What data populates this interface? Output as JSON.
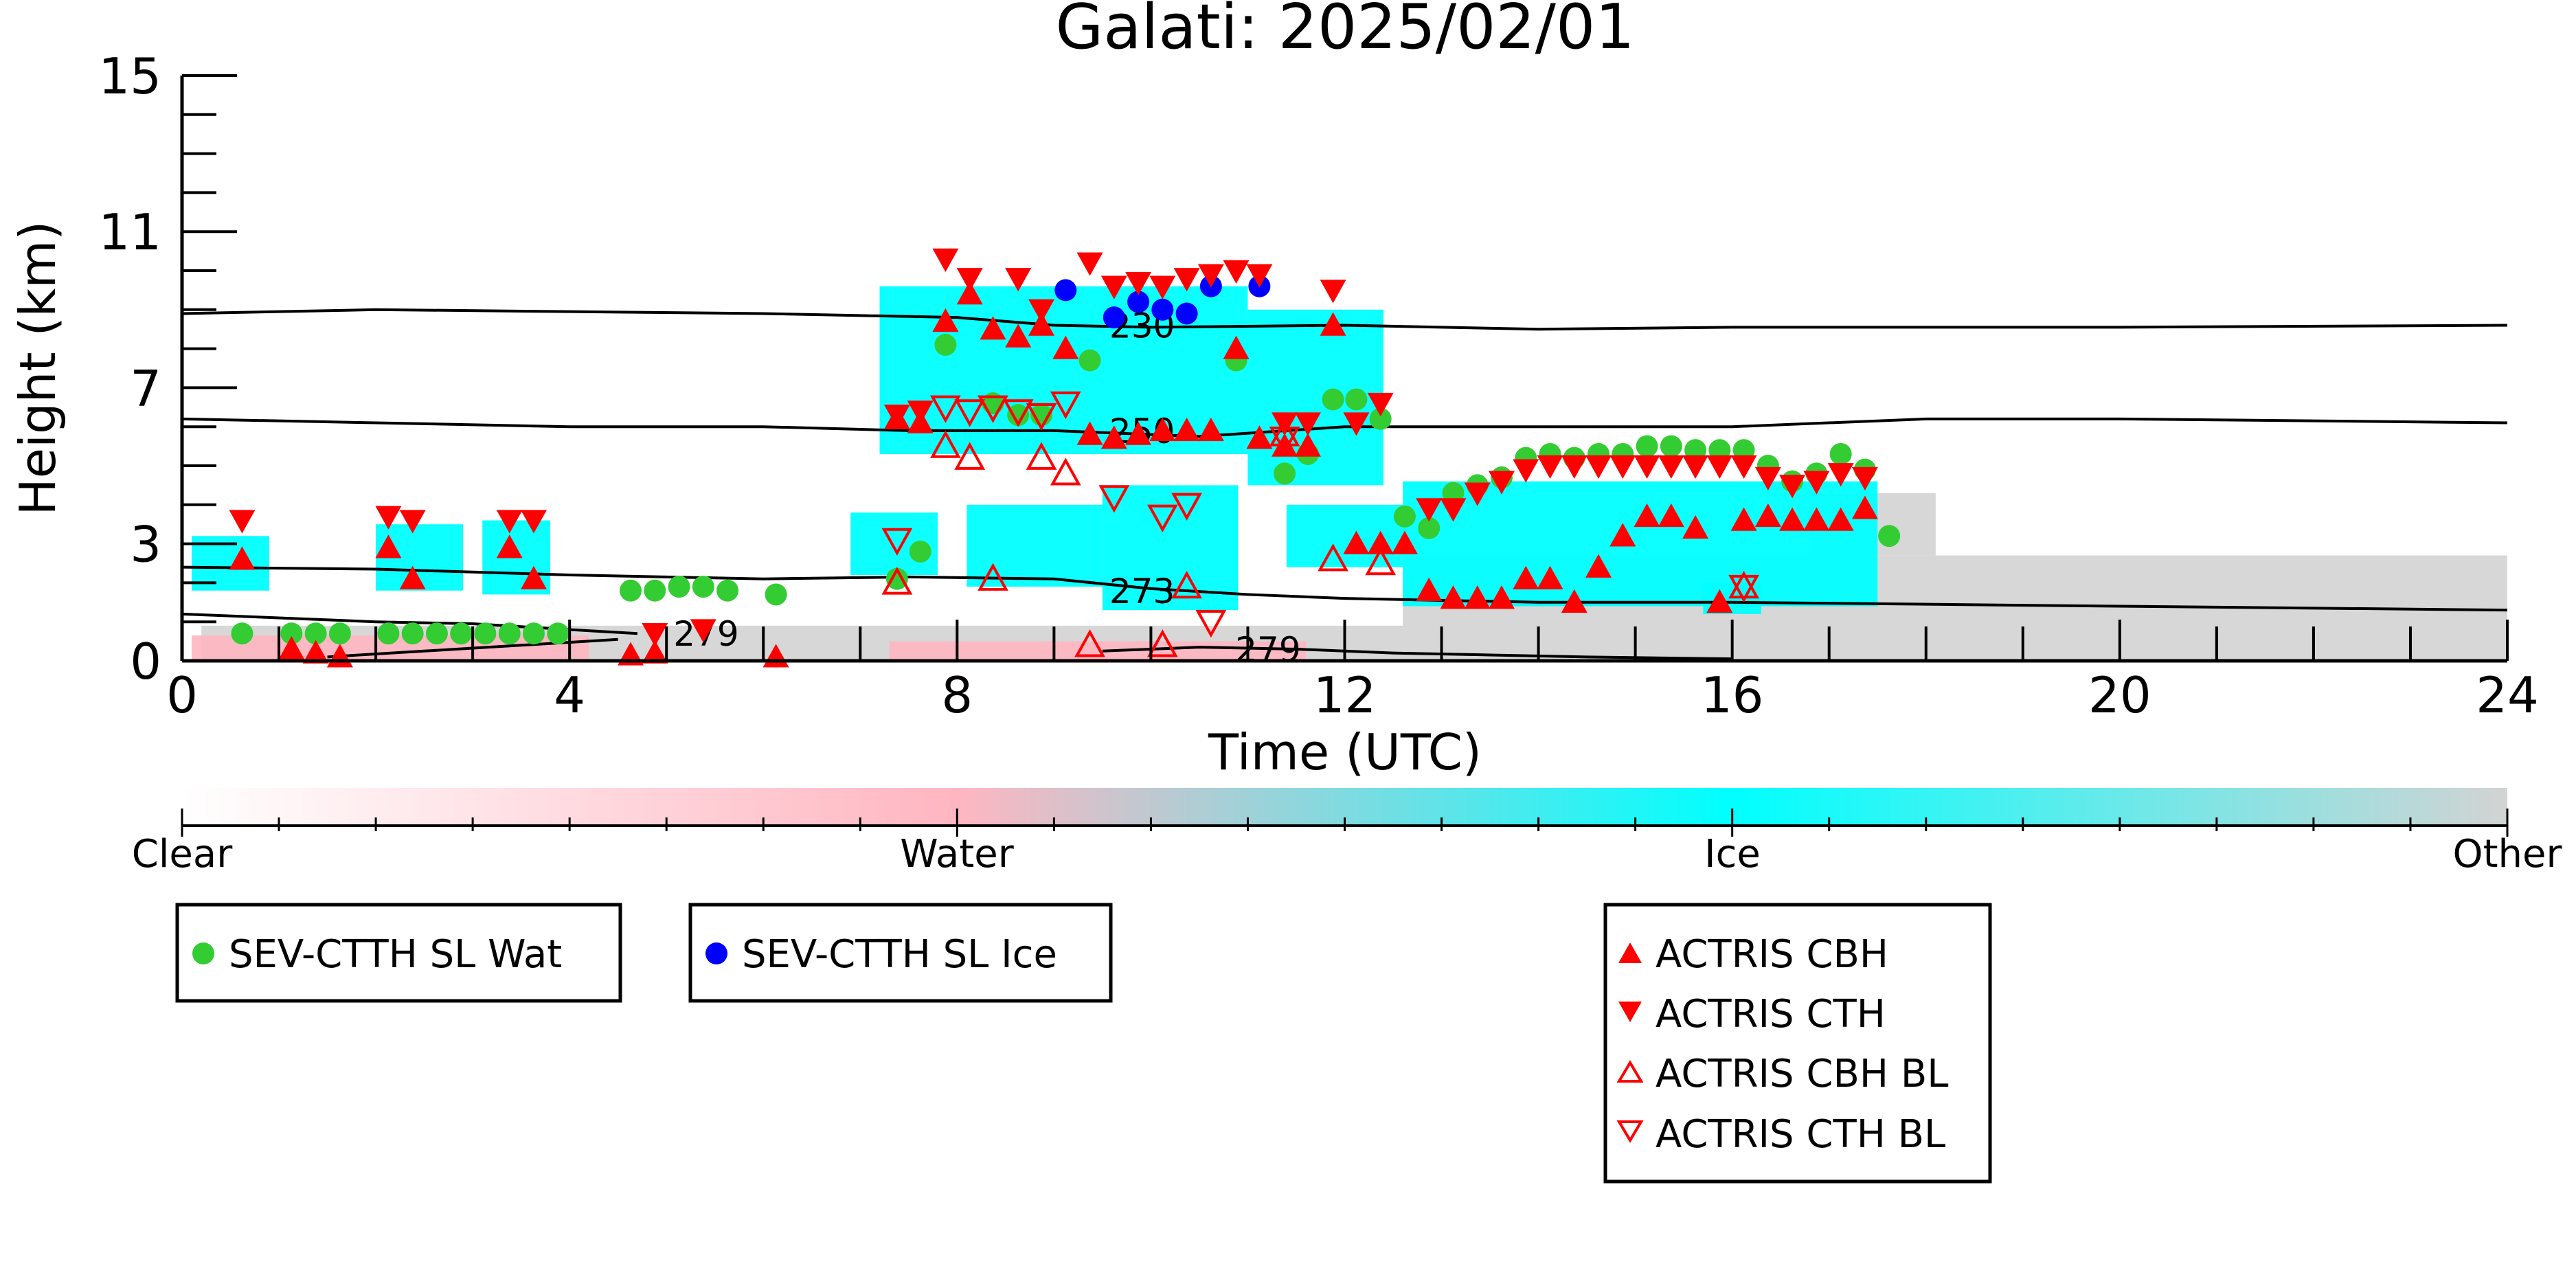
{
  "title": "Galati: 2025/02/01",
  "chart_data": {
    "type": "scatter",
    "title": "Galati: 2025/02/01",
    "xlabel": "Time (UTC)",
    "ylabel": "Height (km)",
    "xlim": [
      0,
      24
    ],
    "ylim": [
      0,
      15
    ],
    "x_ticks": [
      0,
      4,
      8,
      12,
      16,
      20,
      24
    ],
    "y_ticks": [
      0,
      3,
      7,
      11,
      15
    ],
    "background": "cloud-phase curtain (Clear / Water / Ice / Other)",
    "colorbar": {
      "labels": [
        "Clear",
        "Water",
        "Ice",
        "Other"
      ],
      "colors": [
        "#ffffff",
        "#ffb6c1",
        "#00ffff",
        "#d3d3d3"
      ]
    },
    "phase_colors": {
      "clear": "#ffffff",
      "water": "#ffb6c1",
      "ice": "#00ffff",
      "other": "#d3d3d3"
    },
    "phase_regions": [
      {
        "phase": "other",
        "x": [
          0.2,
          12.6
        ],
        "y": [
          0,
          0.9
        ]
      },
      {
        "phase": "water",
        "x": [
          0.1,
          4.2
        ],
        "y": [
          0,
          0.65
        ]
      },
      {
        "phase": "water",
        "x": [
          7.3,
          11.6
        ],
        "y": [
          0,
          0.5
        ]
      },
      {
        "phase": "other",
        "x": [
          12.6,
          24
        ],
        "y": [
          0,
          2.7
        ]
      },
      {
        "phase": "other",
        "x": [
          16.8,
          18.1
        ],
        "y": [
          2.7,
          4.3
        ]
      },
      {
        "phase": "ice",
        "x": [
          0.1,
          0.9
        ],
        "y": [
          1.8,
          3.2
        ]
      },
      {
        "phase": "ice",
        "x": [
          2.0,
          2.9
        ],
        "y": [
          1.8,
          3.5
        ]
      },
      {
        "phase": "ice",
        "x": [
          3.1,
          3.8
        ],
        "y": [
          1.7,
          3.6
        ]
      },
      {
        "phase": "ice",
        "x": [
          7.2,
          11.0
        ],
        "y": [
          5.3,
          9.6
        ]
      },
      {
        "phase": "ice",
        "x": [
          11.0,
          12.4
        ],
        "y": [
          4.5,
          9.0
        ]
      },
      {
        "phase": "ice",
        "x": [
          6.9,
          7.8
        ],
        "y": [
          2.2,
          3.8
        ]
      },
      {
        "phase": "ice",
        "x": [
          8.1,
          9.5
        ],
        "y": [
          1.9,
          4.0
        ]
      },
      {
        "phase": "ice",
        "x": [
          9.5,
          10.9
        ],
        "y": [
          1.3,
          4.5
        ]
      },
      {
        "phase": "ice",
        "x": [
          11.4,
          12.6
        ],
        "y": [
          2.4,
          4.0
        ]
      },
      {
        "phase": "ice",
        "x": [
          12.6,
          17.5
        ],
        "y": [
          1.4,
          4.6
        ]
      },
      {
        "phase": "ice",
        "x": [
          15.7,
          16.3
        ],
        "y": [
          1.2,
          2.0
        ]
      }
    ],
    "isotherms": [
      {
        "label": "230",
        "x": [
          0,
          2,
          4,
          6,
          8,
          9,
          10,
          12,
          14,
          16,
          20,
          24
        ],
        "y": [
          8.9,
          9.0,
          8.95,
          8.9,
          8.8,
          8.6,
          8.55,
          8.6,
          8.5,
          8.55,
          8.55,
          8.6
        ]
      },
      {
        "label": "250",
        "x": [
          0,
          2,
          4,
          6,
          7.5,
          9,
          10.5,
          12,
          14,
          16,
          18,
          20,
          24
        ],
        "y": [
          6.2,
          6.1,
          6.0,
          6.0,
          5.9,
          5.9,
          5.75,
          6.0,
          6.0,
          6.0,
          6.2,
          6.2,
          6.1
        ]
      },
      {
        "label": "273",
        "x": [
          0,
          2,
          4,
          6,
          7.5,
          9,
          10,
          11,
          12,
          14,
          16,
          20,
          24
        ],
        "y": [
          2.4,
          2.35,
          2.2,
          2.1,
          2.15,
          2.1,
          1.85,
          1.7,
          1.6,
          1.5,
          1.5,
          1.4,
          1.3
        ]
      },
      {
        "label": "279",
        "x": [
          0,
          1,
          2,
          3,
          4,
          4.7
        ],
        "y": [
          1.2,
          1.1,
          1.0,
          0.95,
          0.8,
          0.7
        ]
      },
      {
        "label": "279",
        "x": [
          1.5,
          2.5,
          3.5,
          4.5
        ],
        "y": [
          0.1,
          0.25,
          0.4,
          0.55
        ]
      },
      {
        "label": "279",
        "x": [
          9.5,
          10.5,
          11.5,
          12.5,
          13.5,
          14.5,
          16
        ],
        "y": [
          0.25,
          0.35,
          0.3,
          0.2,
          0.15,
          0.1,
          0.05
        ]
      }
    ],
    "isotherm_labels": [
      {
        "text": "230",
        "x": 9.5,
        "y": 8.6
      },
      {
        "text": "250",
        "x": 9.5,
        "y": 5.9
      },
      {
        "text": "273",
        "x": 9.5,
        "y": 1.8
      },
      {
        "text": "279",
        "x": 5.0,
        "y": 0.7
      },
      {
        "text": "279",
        "x": 10.8,
        "y": 0.3
      }
    ],
    "series": [
      {
        "name": "SEV-CTTH SL Wat",
        "marker": "circle",
        "color": "#33cc33",
        "x": [
          0.62,
          1.13,
          1.38,
          1.63,
          2.13,
          2.38,
          2.63,
          2.88,
          3.13,
          3.38,
          3.63,
          3.88,
          4.63,
          4.88,
          5.13,
          5.38,
          5.63,
          6.13,
          7.38,
          7.62,
          7.88,
          8.37,
          8.63,
          8.87,
          9.37,
          10.88,
          11.38,
          11.62,
          11.88,
          12.12,
          12.37,
          12.62,
          12.87,
          13.12,
          13.37,
          13.62,
          13.87,
          14.12,
          14.37,
          14.62,
          14.87,
          15.12,
          15.37,
          15.62,
          15.87,
          16.12,
          16.37,
          16.62,
          16.87,
          17.12,
          17.37,
          17.62
        ],
        "y": [
          0.7,
          0.7,
          0.7,
          0.7,
          0.7,
          0.7,
          0.7,
          0.7,
          0.7,
          0.7,
          0.7,
          0.7,
          1.8,
          1.8,
          1.9,
          1.9,
          1.8,
          1.7,
          2.1,
          2.8,
          8.1,
          6.6,
          6.3,
          6.3,
          7.7,
          7.7,
          4.8,
          5.3,
          6.7,
          6.7,
          6.2,
          3.7,
          3.4,
          4.3,
          4.5,
          4.7,
          5.2,
          5.3,
          5.2,
          5.3,
          5.3,
          5.5,
          5.5,
          5.4,
          5.4,
          5.4,
          5.0,
          4.6,
          4.8,
          5.3,
          4.9,
          3.2
        ]
      },
      {
        "name": "SEV-CTTH SL Ice",
        "marker": "circle",
        "color": "#0000ff",
        "x": [
          9.12,
          9.62,
          9.87,
          10.12,
          10.37,
          10.62,
          11.12
        ],
        "y": [
          9.5,
          8.8,
          9.2,
          9.0,
          8.9,
          9.6,
          9.6
        ]
      },
      {
        "name": "ACTRIS CBH",
        "marker": "triangle-up",
        "color": "#ff0000",
        "x": [
          0.62,
          1.13,
          1.38,
          1.63,
          2.13,
          2.38,
          3.38,
          3.63,
          4.63,
          4.88,
          6.13,
          7.38,
          7.62,
          7.88,
          8.13,
          8.37,
          8.63,
          8.87,
          9.12,
          9.37,
          9.62,
          9.87,
          10.12,
          10.37,
          10.62,
          10.88,
          11.12,
          11.38,
          11.62,
          11.88,
          12.12,
          12.37,
          12.62,
          12.87,
          13.12,
          13.37,
          13.62,
          13.87,
          14.12,
          14.37,
          14.62,
          14.87,
          15.12,
          15.37,
          15.62,
          15.87,
          16.12,
          16.37,
          16.62,
          16.87,
          17.12,
          17.37
        ],
        "y": [
          2.6,
          0.3,
          0.2,
          0.1,
          2.9,
          2.1,
          2.9,
          2.1,
          0.15,
          0.2,
          0.1,
          6.2,
          6.1,
          8.7,
          9.4,
          8.5,
          8.3,
          8.6,
          8.0,
          5.8,
          5.7,
          5.8,
          5.9,
          5.9,
          5.9,
          8.0,
          5.7,
          5.5,
          5.5,
          8.6,
          3.0,
          3.0,
          3.0,
          1.8,
          1.6,
          1.6,
          1.6,
          2.1,
          2.1,
          1.5,
          2.4,
          3.2,
          3.7,
          3.7,
          3.4,
          1.5,
          3.6,
          3.7,
          3.6,
          3.6,
          3.6,
          3.9
        ]
      },
      {
        "name": "ACTRIS CTH",
        "marker": "triangle-down",
        "color": "#ff0000",
        "x": [
          0.62,
          2.13,
          2.38,
          3.38,
          3.63,
          4.88,
          5.38,
          7.38,
          7.62,
          7.88,
          8.13,
          8.63,
          8.87,
          9.37,
          9.62,
          9.87,
          10.12,
          10.37,
          10.62,
          10.88,
          11.12,
          11.38,
          11.62,
          11.88,
          12.12,
          12.37,
          12.87,
          13.12,
          13.37,
          13.62,
          13.87,
          14.12,
          14.37,
          14.62,
          14.87,
          15.12,
          15.37,
          15.62,
          15.87,
          16.12,
          16.37,
          16.62,
          16.87,
          17.12,
          17.37
        ],
        "y": [
          3.6,
          3.7,
          3.6,
          3.6,
          3.6,
          0.7,
          0.8,
          6.3,
          6.4,
          10.3,
          9.8,
          9.8,
          9.0,
          10.2,
          9.6,
          9.7,
          9.6,
          9.8,
          9.9,
          10.0,
          9.9,
          6.1,
          6.1,
          9.5,
          6.1,
          6.6,
          3.9,
          3.9,
          4.3,
          4.6,
          4.9,
          5.0,
          5.0,
          5.0,
          5.0,
          5.0,
          5.0,
          5.0,
          5.0,
          5.0,
          4.7,
          4.5,
          4.6,
          4.8,
          4.7
        ]
      },
      {
        "name": "ACTRIS CBH BL",
        "marker": "triangle-up-open",
        "color": "#ff0000",
        "x": [
          7.38,
          7.88,
          8.13,
          8.37,
          8.87,
          9.12,
          9.37,
          10.12,
          10.37,
          11.38,
          11.88,
          12.37,
          16.12
        ],
        "y": [
          2.0,
          5.5,
          5.2,
          2.1,
          5.2,
          4.8,
          0.4,
          0.4,
          1.9,
          5.8,
          2.6,
          2.5,
          1.9
        ]
      },
      {
        "name": "ACTRIS CTH BL",
        "marker": "triangle-down-open",
        "color": "#ff0000",
        "x": [
          7.38,
          7.88,
          8.13,
          8.37,
          8.63,
          8.87,
          9.12,
          9.62,
          10.12,
          10.37,
          10.62,
          11.38,
          16.12
        ],
        "y": [
          3.1,
          6.5,
          6.4,
          6.5,
          6.4,
          6.3,
          6.6,
          4.2,
          3.7,
          4.0,
          1.0,
          5.7,
          1.9
        ]
      }
    ],
    "legend": {
      "groups": [
        {
          "position": "bottom-left",
          "entries": [
            "SEV-CTTH SL Wat"
          ]
        },
        {
          "position": "bottom-left",
          "entries": [
            "SEV-CTTH SL Ice"
          ]
        },
        {
          "position": "bottom-center-right",
          "entries": [
            "ACTRIS CBH",
            "ACTRIS CTH",
            "ACTRIS CBH BL",
            "ACTRIS CTH BL"
          ]
        }
      ]
    },
    "grid": false
  }
}
